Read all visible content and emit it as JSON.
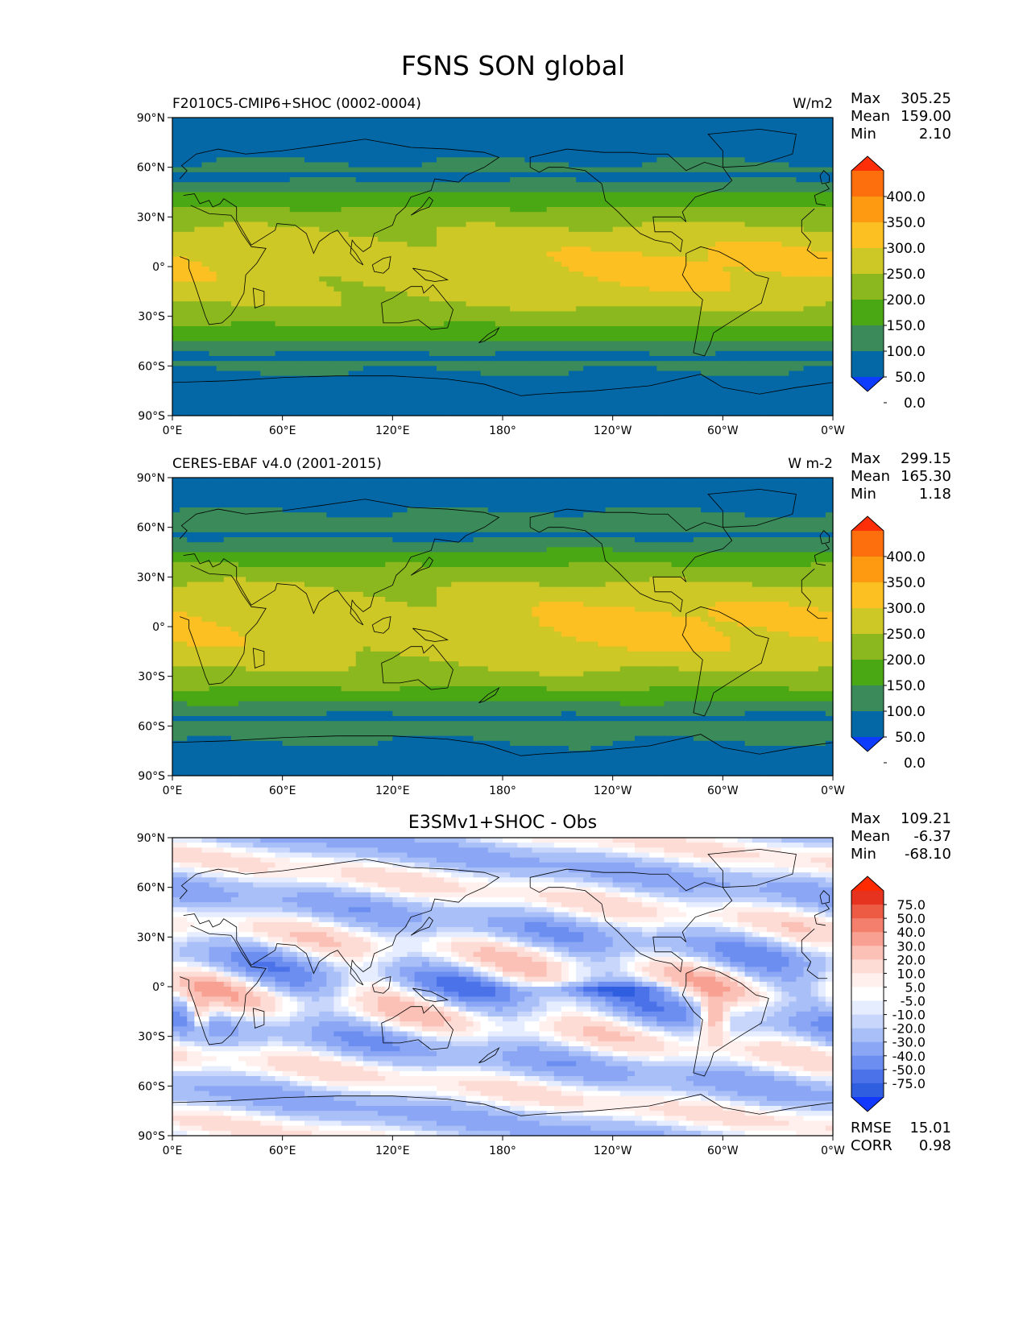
{
  "figure_title": "FSNS SON global",
  "colors": {
    "abs_levels": [
      "#0d3cff",
      "#0568a6",
      "#3a8a5a",
      "#4aa814",
      "#8ab81e",
      "#cec826",
      "#fcc022",
      "#fe9a12",
      "#fd6e0c",
      "#fe2e08"
    ],
    "diff_levels": [
      "#1038ff",
      "#2f5fe0",
      "#4b72e8",
      "#6b8ef0",
      "#8aa6f4",
      "#a9bff8",
      "#c9d6fb",
      "#e6edfe",
      "#ffffff",
      "#fff0ee",
      "#fddcd6",
      "#fbc1b7",
      "#f8a192",
      "#f47f6d",
      "#ee5b45",
      "#e6331f",
      "#ff2a00"
    ],
    "coastline": "#000000"
  },
  "chart_data": [
    {
      "type": "heatmap",
      "projection": "equirectangular",
      "title": "F2010C5-CMIP6+SHOC (0002-0004)",
      "units": "W/m2",
      "stats": {
        "max_label": "Max",
        "max": "305.25",
        "mean_label": "Mean",
        "mean": "159.00",
        "min_label": "Min",
        "min": "2.10"
      },
      "colorbar": {
        "labels": [
          "400.0",
          "350.0",
          "300.0",
          "250.0",
          "200.0",
          "150.0",
          "100.0",
          "50.0",
          "0.0"
        ]
      },
      "y_ticks": [
        "90°N",
        "60°N",
        "30°N",
        "0°",
        "30°S",
        "60°S",
        "90°S"
      ],
      "x_ticks": [
        "0°E",
        "60°E",
        "120°E",
        "180°",
        "120°W",
        "60°W",
        "0°W"
      ],
      "xlim": [
        0,
        360
      ],
      "ylim": [
        -90,
        90
      ]
    },
    {
      "type": "heatmap",
      "projection": "equirectangular",
      "title": "CERES-EBAF v4.0 (2001-2015)",
      "units": "W m-2",
      "stats": {
        "max_label": "Max",
        "max": "299.15",
        "mean_label": "Mean",
        "mean": "165.30",
        "min_label": "Min",
        "min": "1.18"
      },
      "colorbar": {
        "labels": [
          "400.0",
          "350.0",
          "300.0",
          "250.0",
          "200.0",
          "150.0",
          "100.0",
          "50.0",
          "0.0"
        ]
      },
      "y_ticks": [
        "90°N",
        "60°N",
        "30°N",
        "0°",
        "30°S",
        "60°S",
        "90°S"
      ],
      "x_ticks": [
        "0°E",
        "60°E",
        "120°E",
        "180°",
        "120°W",
        "60°W",
        "0°W"
      ],
      "xlim": [
        0,
        360
      ],
      "ylim": [
        -90,
        90
      ]
    },
    {
      "type": "heatmap",
      "projection": "equirectangular",
      "title": "E3SMv1+SHOC - Obs",
      "stats": {
        "max_label": "Max",
        "max": "109.21",
        "mean_label": "Mean",
        "mean": "-6.37",
        "min_label": "Min",
        "min": "-68.10"
      },
      "colorbar": {
        "labels": [
          "75.0",
          "50.0",
          "40.0",
          "30.0",
          "20.0",
          "10.0",
          "5.0",
          "-5.0",
          "-10.0",
          "-20.0",
          "-30.0",
          "-40.0",
          "-50.0",
          "-75.0"
        ]
      },
      "metrics": {
        "rmse_label": "RMSE",
        "rmse": "15.01",
        "corr_label": "CORR",
        "corr": "0.98"
      },
      "y_ticks": [
        "90°N",
        "60°N",
        "30°N",
        "0°",
        "30°S",
        "60°S",
        "90°S"
      ],
      "x_ticks": [
        "0°E",
        "60°E",
        "120°E",
        "180°",
        "120°W",
        "60°W",
        "0°W"
      ],
      "xlim": [
        0,
        360
      ],
      "ylim": [
        -90,
        90
      ]
    }
  ]
}
